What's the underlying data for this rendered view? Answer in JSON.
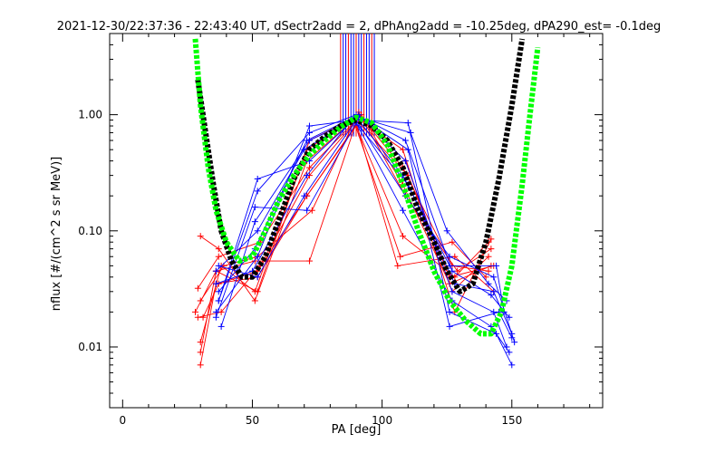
{
  "chart_data": {
    "type": "scatter",
    "title": "2021-12-30/22:37:36 - 22:43:40 UT, dSectr2add = 2, dPhAng2add = -10.25deg, dPA290_est=  -0.1deg",
    "xlabel": "PA [deg]",
    "ylabel": "nflux [#/(cm^2 s sr MeV)]",
    "xlim": [
      -5,
      185
    ],
    "ylim": [
      0.003,
      5.0
    ],
    "y_scale": "log",
    "grid": false,
    "x_ticks": [
      0,
      50,
      100,
      150
    ],
    "x_tick_labels": [
      "0",
      "50",
      "100",
      "150"
    ],
    "y_ticks": [
      0.01,
      0.1,
      1.0
    ],
    "y_tick_labels": [
      "0.01",
      "0.10",
      "1.00"
    ],
    "colors": {
      "red": "#ff0000",
      "blue": "#0000ff",
      "black": "#000000",
      "green": "#00ff00"
    },
    "series": [
      {
        "color": "red",
        "type": "line+cross",
        "lines": [
          [
            [
              30,
              0.009
            ],
            [
              36,
              0.045
            ],
            [
              52,
              0.03
            ],
            [
              72,
              0.6
            ],
            [
              90,
              0.95
            ],
            [
              108,
              0.5
            ],
            [
              128,
              0.02
            ],
            [
              142,
              0.085
            ]
          ],
          [
            [
              30,
              0.011
            ],
            [
              38,
              0.05
            ],
            [
              51,
              0.03
            ],
            [
              71,
              0.5
            ],
            [
              91,
              1.0
            ],
            [
              109,
              0.4
            ],
            [
              127,
              0.03
            ],
            [
              141,
              0.06
            ]
          ],
          [
            [
              29,
              0.032
            ],
            [
              37,
              0.06
            ],
            [
              53,
              0.08
            ],
            [
              72,
              0.35
            ],
            [
              90,
              0.9
            ],
            [
              110,
              0.3
            ],
            [
              126,
              0.04
            ],
            [
              143,
              0.05
            ]
          ],
          [
            [
              31,
              0.018
            ],
            [
              37,
              0.035
            ],
            [
              52,
              0.045
            ],
            [
              71,
              0.2
            ],
            [
              92,
              0.95
            ],
            [
              108,
              0.35
            ],
            [
              127,
              0.05
            ],
            [
              141,
              0.045
            ]
          ],
          [
            [
              28,
              0.02
            ],
            [
              36,
              0.045
            ],
            [
              51,
              0.055
            ],
            [
              72,
              0.055
            ],
            [
              90,
              0.85
            ],
            [
              106,
              0.05
            ],
            [
              128,
              0.06
            ],
            [
              143,
              0.03
            ]
          ],
          [
            [
              30,
              0.025
            ],
            [
              39,
              0.05
            ],
            [
              52,
              0.06
            ],
            [
              73,
              0.15
            ],
            [
              91,
              1.05
            ],
            [
              109,
              0.2
            ],
            [
              129,
              0.045
            ],
            [
              142,
              0.07
            ]
          ],
          [
            [
              30,
              0.09
            ],
            [
              37,
              0.07
            ],
            [
              51,
              0.025
            ],
            [
              71,
              0.4
            ],
            [
              89,
              0.9
            ],
            [
              107,
              0.06
            ],
            [
              127,
              0.08
            ],
            [
              140,
              0.04
            ]
          ],
          [
            [
              29,
              0.018
            ],
            [
              38,
              0.02
            ],
            [
              53,
              0.05
            ],
            [
              72,
              0.3
            ],
            [
              92,
              1.0
            ],
            [
              108,
              0.25
            ],
            [
              126,
              0.035
            ],
            [
              142,
              0.05
            ]
          ],
          [
            [
              30,
              0.007
            ],
            [
              36,
              0.035
            ],
            [
              52,
              0.04
            ],
            [
              71,
              0.2
            ],
            [
              90,
              0.8
            ],
            [
              108,
              0.09
            ],
            [
              128,
              0.04
            ],
            [
              141,
              0.08
            ]
          ]
        ]
      },
      {
        "color": "blue",
        "type": "line+cross",
        "lines": [
          [
            [
              36,
              0.02
            ],
            [
              52,
              0.06
            ],
            [
              72,
              0.8
            ],
            [
              90,
              0.9
            ],
            [
              110,
              0.85
            ],
            [
              126,
              0.02
            ],
            [
              144,
              0.013
            ],
            [
              150,
              0.007
            ]
          ],
          [
            [
              37,
              0.03
            ],
            [
              51,
              0.07
            ],
            [
              71,
              0.6
            ],
            [
              91,
              1.0
            ],
            [
              109,
              0.4
            ],
            [
              127,
              0.03
            ],
            [
              143,
              0.02
            ],
            [
              148,
              0.01
            ]
          ],
          [
            [
              36,
              0.045
            ],
            [
              52,
              0.1
            ],
            [
              70,
              0.5
            ],
            [
              90,
              0.95
            ],
            [
              108,
              0.3
            ],
            [
              126,
              0.05
            ],
            [
              144,
              0.05
            ],
            [
              147,
              0.02
            ]
          ],
          [
            [
              37,
              0.025
            ],
            [
              52,
              0.28
            ],
            [
              72,
              0.4
            ],
            [
              89,
              0.9
            ],
            [
              110,
              0.25
            ],
            [
              128,
              0.035
            ],
            [
              143,
              0.03
            ],
            [
              150,
              0.013
            ]
          ],
          [
            [
              36,
              0.035
            ],
            [
              50,
              0.045
            ],
            [
              71,
              0.3
            ],
            [
              90,
              1.0
            ],
            [
              109,
              0.6
            ],
            [
              127,
              0.045
            ],
            [
              142,
              0.028
            ],
            [
              149,
              0.018
            ]
          ],
          [
            [
              38,
              0.015
            ],
            [
              51,
              0.12
            ],
            [
              72,
              0.6
            ],
            [
              91,
              0.95
            ],
            [
              111,
              0.7
            ],
            [
              125,
              0.1
            ],
            [
              141,
              0.035
            ],
            [
              148,
              0.025
            ]
          ],
          [
            [
              37,
              0.05
            ],
            [
              52,
              0.04
            ],
            [
              70,
              0.2
            ],
            [
              90,
              0.9
            ],
            [
              109,
              0.2
            ],
            [
              126,
              0.06
            ],
            [
              143,
              0.04
            ],
            [
              151,
              0.011
            ]
          ],
          [
            [
              36,
              0.018
            ],
            [
              51,
              0.16
            ],
            [
              71,
              0.15
            ],
            [
              90,
              0.85
            ],
            [
              108,
              0.15
            ],
            [
              127,
              0.025
            ],
            [
              142,
              0.015
            ],
            [
              149,
              0.009
            ]
          ],
          [
            [
              37,
              0.025
            ],
            [
              52,
              0.22
            ],
            [
              72,
              0.7
            ],
            [
              90,
              1.0
            ],
            [
              110,
              0.5
            ],
            [
              126,
              0.015
            ],
            [
              145,
              0.02
            ],
            [
              150,
              0.012
            ]
          ]
        ]
      },
      {
        "color": "black",
        "type": "dashed-curve",
        "points": [
          [
            29,
            2.0
          ],
          [
            32,
            0.7
          ],
          [
            35,
            0.25
          ],
          [
            38,
            0.1
          ],
          [
            42,
            0.055
          ],
          [
            46,
            0.04
          ],
          [
            50,
            0.04
          ],
          [
            55,
            0.06
          ],
          [
            60,
            0.12
          ],
          [
            66,
            0.28
          ],
          [
            72,
            0.5
          ],
          [
            78,
            0.65
          ],
          [
            84,
            0.8
          ],
          [
            90,
            0.9
          ],
          [
            96,
            0.8
          ],
          [
            102,
            0.6
          ],
          [
            108,
            0.35
          ],
          [
            114,
            0.15
          ],
          [
            120,
            0.08
          ],
          [
            125,
            0.045
          ],
          [
            130,
            0.03
          ],
          [
            135,
            0.035
          ],
          [
            140,
            0.08
          ],
          [
            145,
            0.28
          ],
          [
            150,
            1.2
          ],
          [
            154,
            4.5
          ]
        ]
      },
      {
        "color": "green",
        "type": "dashed-curve",
        "points": [
          [
            28,
            4.5
          ],
          [
            30,
            1.2
          ],
          [
            33,
            0.35
          ],
          [
            36,
            0.15
          ],
          [
            40,
            0.08
          ],
          [
            45,
            0.055
          ],
          [
            50,
            0.06
          ],
          [
            55,
            0.1
          ],
          [
            60,
            0.18
          ],
          [
            66,
            0.3
          ],
          [
            72,
            0.45
          ],
          [
            78,
            0.6
          ],
          [
            84,
            0.78
          ],
          [
            90,
            0.95
          ],
          [
            96,
            0.85
          ],
          [
            102,
            0.55
          ],
          [
            108,
            0.25
          ],
          [
            114,
            0.1
          ],
          [
            120,
            0.045
          ],
          [
            126,
            0.025
          ],
          [
            132,
            0.017
          ],
          [
            138,
            0.013
          ],
          [
            142,
            0.013
          ],
          [
            146,
            0.02
          ],
          [
            150,
            0.05
          ],
          [
            154,
            0.25
          ],
          [
            157,
            1.0
          ],
          [
            160,
            3.8
          ]
        ]
      },
      {
        "color": "mixed-red-blue",
        "type": "vertical-lines",
        "x": [
          84,
          85,
          86,
          87,
          88,
          89,
          90,
          91,
          92,
          93,
          94,
          95,
          96,
          97
        ]
      }
    ]
  }
}
